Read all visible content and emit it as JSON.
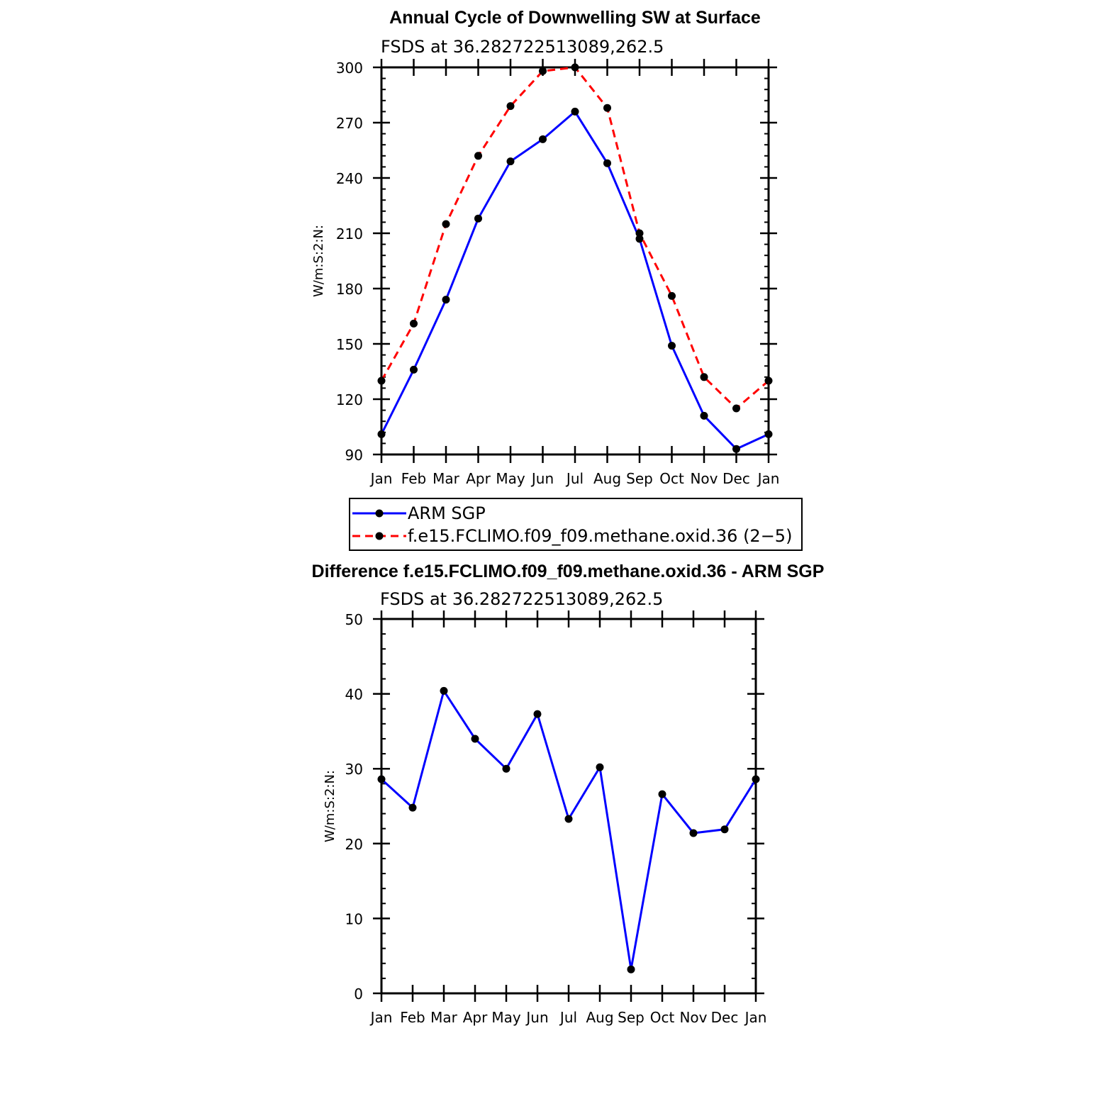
{
  "chart_data": [
    {
      "type": "line",
      "title": "Annual Cycle of Downwelling SW at Surface",
      "subtitle": "FSDS at 36.282722513089,262.5",
      "ylabel": "W/m:S:2:N:",
      "xlabel": "",
      "categories": [
        "Jan",
        "Feb",
        "Mar",
        "Apr",
        "May",
        "Jun",
        "Jul",
        "Aug",
        "Sep",
        "Oct",
        "Nov",
        "Dec",
        "Jan"
      ],
      "ylim": [
        90,
        300
      ],
      "yticks": [
        90,
        120,
        150,
        180,
        210,
        240,
        270,
        300
      ],
      "series": [
        {
          "name": "ARM SGP",
          "color": "#0000ff",
          "dash": "solid",
          "values": [
            101,
            136,
            174,
            218,
            249,
            261,
            276,
            248,
            207,
            149,
            111,
            93,
            101
          ]
        },
        {
          "name": "f.e15.FCLIMO.f09_f09.methane.oxid.36 (2−5)",
          "color": "#ff0000",
          "dash": "dashed",
          "values": [
            130,
            161,
            215,
            252,
            279,
            298,
            300,
            278,
            210,
            176,
            132,
            115,
            130
          ]
        }
      ],
      "legend_position": "bottom"
    },
    {
      "type": "line",
      "title": "Difference f.e15.FCLIMO.f09_f09.methane.oxid.36 - ARM SGP",
      "subtitle": "FSDS at 36.282722513089,262.5",
      "ylabel": "W/m:S:2:N:",
      "xlabel": "",
      "categories": [
        "Jan",
        "Feb",
        "Mar",
        "Apr",
        "May",
        "Jun",
        "Jul",
        "Aug",
        "Sep",
        "Oct",
        "Nov",
        "Dec",
        "Jan"
      ],
      "ylim": [
        0,
        50
      ],
      "yticks": [
        0,
        10,
        20,
        30,
        40,
        50
      ],
      "series": [
        {
          "color": "#0000ff",
          "dash": "solid",
          "values": [
            28.6,
            24.8,
            40.4,
            34.0,
            30.0,
            37.3,
            23.3,
            30.2,
            3.2,
            26.6,
            21.4,
            21.9,
            28.6
          ]
        }
      ]
    }
  ]
}
